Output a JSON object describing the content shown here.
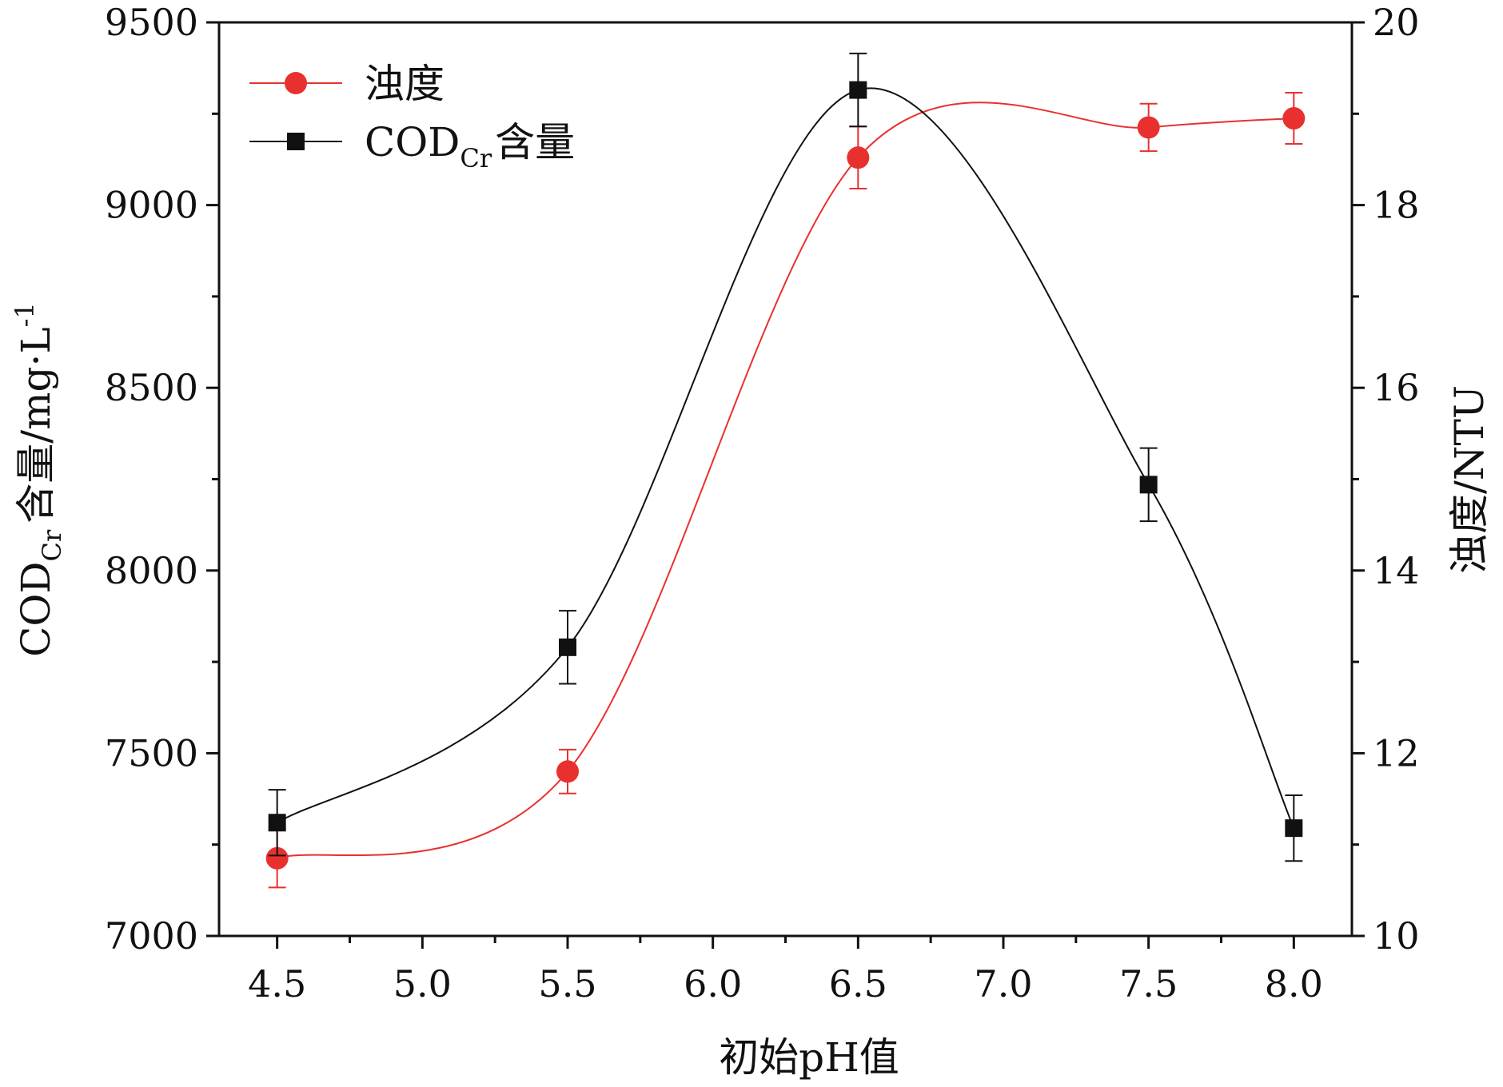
{
  "chart_data": {
    "type": "line",
    "xlabel": "初始pH值",
    "ylabel_left": {
      "main": "COD",
      "sub": "Cr",
      "rest": "含量/mg·L",
      "sup": "-1"
    },
    "ylabel_right": "浊度/NTU",
    "xlim": [
      4.3,
      8.2
    ],
    "ylim_left": [
      7000,
      9500
    ],
    "ylim_right": [
      10,
      20
    ],
    "x_ticks": [
      "4.5",
      "5.0",
      "5.5",
      "6.0",
      "6.5",
      "7.0",
      "7.5",
      "8.0"
    ],
    "y_left_ticks": [
      "7000",
      "7500",
      "8000",
      "8500",
      "9000",
      "9500"
    ],
    "y_right_ticks": [
      "10",
      "12",
      "14",
      "16",
      "18",
      "20"
    ],
    "x": [
      4.5,
      5.5,
      6.5,
      7.5,
      8.0
    ],
    "series": [
      {
        "name": "浊度",
        "axis": "right",
        "color": "#e8312f",
        "marker": "circle",
        "values": [
          10.85,
          11.8,
          18.52,
          18.85,
          18.95
        ],
        "errors": [
          0.32,
          0.24,
          0.34,
          0.26,
          0.28
        ]
      },
      {
        "name": "COD",
        "name_sub": "Cr",
        "name_suffix": "含量",
        "axis": "left",
        "color": "#111111",
        "marker": "square",
        "values": [
          7310,
          7790,
          9315,
          8235,
          7295
        ],
        "errors": [
          90,
          100,
          100,
          100,
          90
        ]
      }
    ],
    "legend_position": "top-left",
    "grid": false
  }
}
